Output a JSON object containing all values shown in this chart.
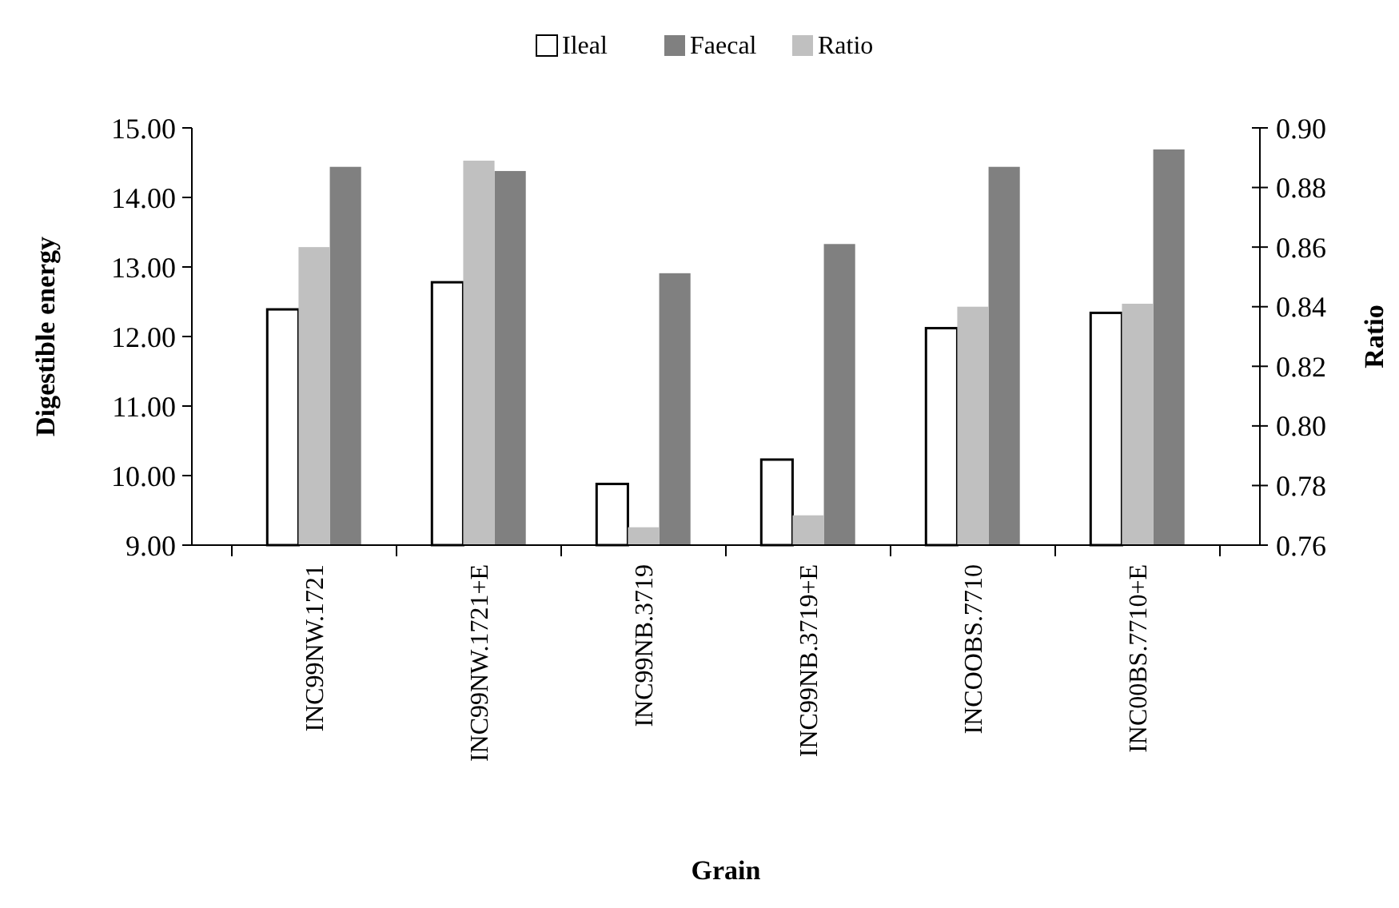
{
  "chart_data": {
    "type": "bar",
    "xlabel": "Grain",
    "ylabel": "Digestible energy",
    "y2label": "Ratio",
    "categories": [
      "INC99NW.1721",
      "INC99NW.1721+E",
      "INC99NB.3719",
      "INC99NB.3719+E",
      "INCOOBS.7710",
      "INC00BS.7710+E"
    ],
    "series": [
      {
        "name": "Ileal",
        "color": "#ffffff",
        "values": [
          12.39,
          12.78,
          9.88,
          10.23,
          12.12,
          12.34
        ]
      },
      {
        "name": "Faecal",
        "color": "#808080",
        "values": [
          14.44,
          14.38,
          12.91,
          13.33,
          14.44,
          14.69
        ]
      },
      {
        "name": "Ratio",
        "color": "#c0c0c0",
        "axis": "y2",
        "values": [
          0.86,
          0.889,
          0.766,
          0.77,
          0.84,
          0.841
        ]
      }
    ],
    "ylim": [
      9,
      15
    ],
    "yticks": [
      {
        "value": 9,
        "label": "9.00"
      },
      {
        "value": 10,
        "label": "10.00"
      },
      {
        "value": 11,
        "label": "11.00"
      },
      {
        "value": 12,
        "label": "12.00"
      },
      {
        "value": 13,
        "label": "13.00"
      },
      {
        "value": 14,
        "label": "14.00"
      },
      {
        "value": 15,
        "label": "15.00"
      }
    ],
    "y2lim": [
      0.76,
      0.9
    ],
    "y2ticks": [
      {
        "value": 0.76,
        "label": "0.76"
      },
      {
        "value": 0.78,
        "label": "0.78"
      },
      {
        "value": 0.8,
        "label": "0.80"
      },
      {
        "value": 0.82,
        "label": "0.82"
      },
      {
        "value": 0.84,
        "label": "0.84"
      },
      {
        "value": 0.86,
        "label": "0.86"
      },
      {
        "value": 0.88,
        "label": "0.88"
      },
      {
        "value": 0.9,
        "label": "0.90"
      }
    ],
    "legend": "top",
    "grid": false
  }
}
